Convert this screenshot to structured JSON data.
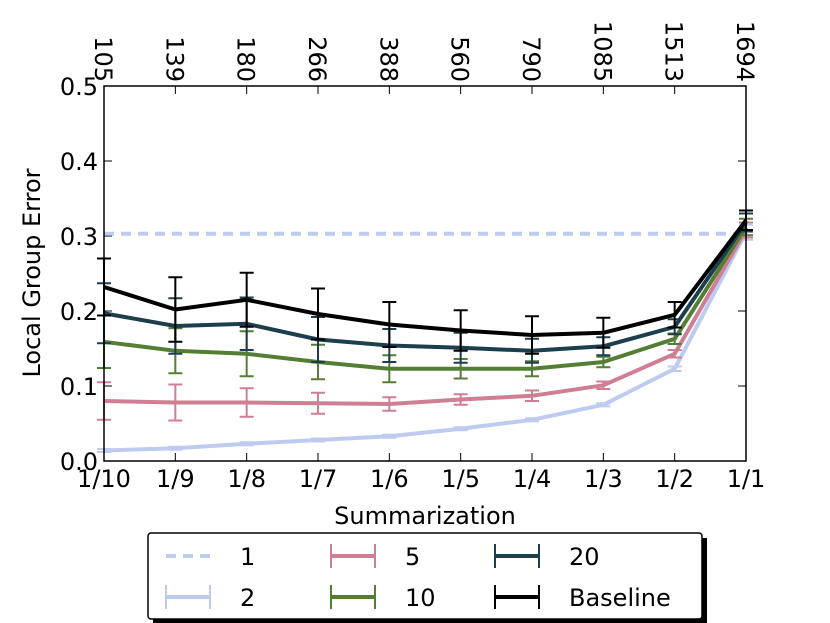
{
  "chart_data": {
    "type": "line",
    "xlabel": "Summarization",
    "ylabel": "Local Group Error",
    "categories": [
      "1/10",
      "1/9",
      "1/8",
      "1/7",
      "1/6",
      "1/5",
      "1/4",
      "1/3",
      "1/2",
      "1/1"
    ],
    "top_categories": [
      "105",
      "139",
      "180",
      "266",
      "388",
      "560",
      "790",
      "1085",
      "1513",
      "1694"
    ],
    "ylim": [
      0.0,
      0.5
    ],
    "yticks": [
      0.0,
      0.1,
      0.2,
      0.3,
      0.4,
      0.5
    ],
    "ytick_labels": [
      "0.0",
      "0.1",
      "0.2",
      "0.3",
      "0.4",
      "0.5"
    ],
    "hline": {
      "name": "1",
      "value": 0.303,
      "color": "#bccbef"
    },
    "series": [
      {
        "name": "2",
        "color": "#bccbef",
        "values": [
          0.014,
          0.017,
          0.023,
          0.028,
          0.033,
          0.043,
          0.055,
          0.075,
          0.123,
          0.305
        ],
        "errors": [
          0.002,
          0.002,
          0.002,
          0.002,
          0.002,
          0.002,
          0.002,
          0.002,
          0.003,
          0.01
        ]
      },
      {
        "name": "5",
        "color": "#d07e93",
        "values": [
          0.08,
          0.078,
          0.078,
          0.077,
          0.076,
          0.082,
          0.087,
          0.101,
          0.143,
          0.308
        ],
        "errors": [
          0.025,
          0.024,
          0.019,
          0.014,
          0.009,
          0.007,
          0.007,
          0.005,
          0.005,
          0.01
        ]
      },
      {
        "name": "10",
        "color": "#557e35",
        "values": [
          0.159,
          0.147,
          0.143,
          0.132,
          0.123,
          0.123,
          0.123,
          0.132,
          0.163,
          0.312
        ],
        "errors": [
          0.035,
          0.03,
          0.03,
          0.023,
          0.018,
          0.013,
          0.01,
          0.007,
          0.007,
          0.011
        ]
      },
      {
        "name": "20",
        "color": "#1d3e4c",
        "values": [
          0.197,
          0.18,
          0.183,
          0.162,
          0.154,
          0.151,
          0.147,
          0.153,
          0.179,
          0.318
        ],
        "errors": [
          0.04,
          0.037,
          0.035,
          0.03,
          0.022,
          0.02,
          0.016,
          0.012,
          0.01,
          0.012
        ]
      },
      {
        "name": "Baseline",
        "color": "#000000",
        "values": [
          0.232,
          0.202,
          0.215,
          0.196,
          0.182,
          0.174,
          0.168,
          0.171,
          0.195,
          0.321
        ],
        "errors": [
          0.038,
          0.043,
          0.036,
          0.034,
          0.03,
          0.027,
          0.025,
          0.02,
          0.017,
          0.013
        ]
      }
    ],
    "legend": {
      "position": "bottom-center",
      "entries": [
        "1",
        "5",
        "20",
        "2",
        "10",
        "Baseline"
      ]
    }
  }
}
